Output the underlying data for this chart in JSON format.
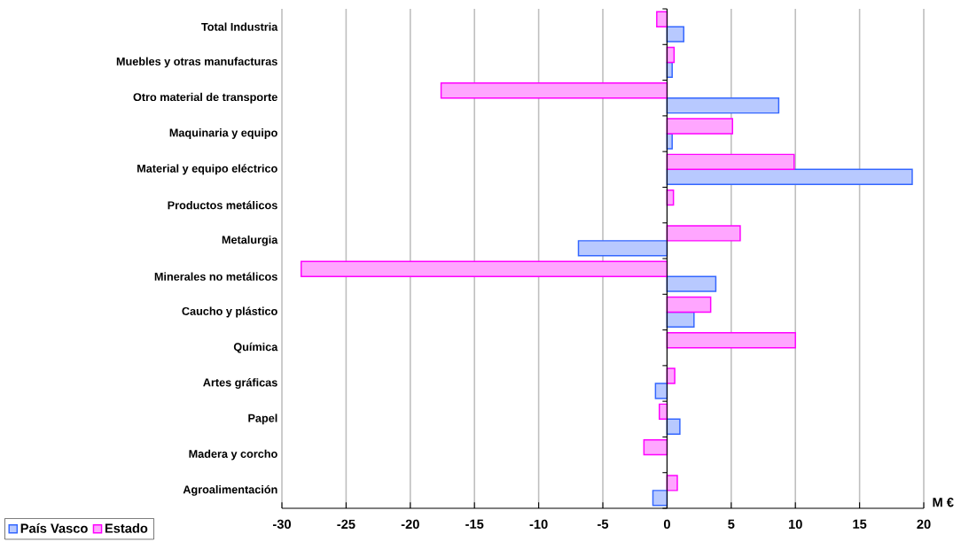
{
  "chart_data": {
    "type": "bar",
    "orientation": "horizontal",
    "xlabel": "M €",
    "categories": [
      "Total Industria",
      "Muebles y otras manufacturas",
      "Otro material de transporte",
      "Maquinaria y equipo",
      "Material y equipo eléctrico",
      "Productos metálicos",
      "Metalurgia",
      "Minerales no metálicos",
      "Caucho y plástico",
      "Química",
      "Artes gráficas",
      "Papel",
      "Madera y corcho",
      "Agroalimentación"
    ],
    "series": [
      {
        "name": "País Vasco",
        "color": "#3366ff",
        "values": [
          1.3,
          0.4,
          8.7,
          0.4,
          19.1,
          null,
          -6.9,
          3.8,
          2.1,
          null,
          -0.9,
          1.0,
          null,
          -1.1
        ]
      },
      {
        "name": "Estado",
        "color": "#ff00ff",
        "values": [
          -0.8,
          0.55,
          -17.6,
          5.1,
          9.9,
          0.5,
          5.7,
          -28.5,
          3.4,
          10.0,
          0.6,
          -0.6,
          -1.8,
          0.8
        ]
      }
    ],
    "xlim": [
      -30,
      20
    ],
    "xticks": [
      -30,
      -25,
      -20,
      -15,
      -10,
      -5,
      0,
      5,
      10,
      15,
      20
    ],
    "grid": "x",
    "legend": "bottom left"
  }
}
